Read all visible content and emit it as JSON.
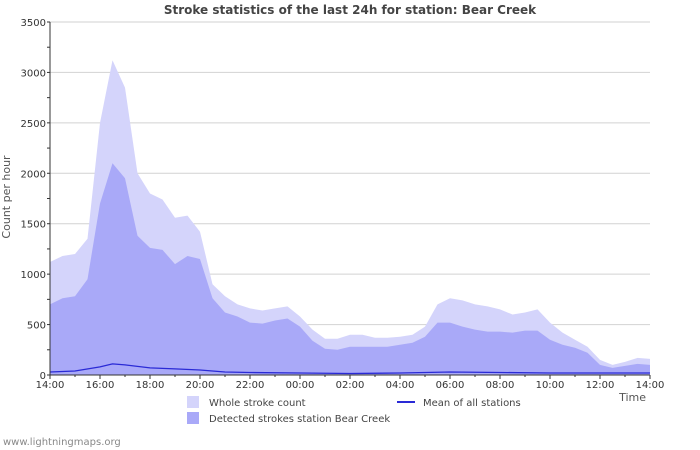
{
  "chart_data": {
    "type": "area",
    "title": "Stroke statistics of the last 24h for station: Bear Creek",
    "xlabel": "Time",
    "ylabel": "Count per hour",
    "ylim": [
      0,
      3500
    ],
    "xlim": [
      0,
      24
    ],
    "y_ticks": [
      0,
      500,
      1000,
      1500,
      2000,
      2500,
      3000,
      3500
    ],
    "x_ticks": [
      {
        "x": 0,
        "label": "14:00"
      },
      {
        "x": 2,
        "label": "16:00"
      },
      {
        "x": 4,
        "label": "18:00"
      },
      {
        "x": 6,
        "label": "20:00"
      },
      {
        "x": 8,
        "label": "22:00"
      },
      {
        "x": 10,
        "label": "00:00"
      },
      {
        "x": 12,
        "label": "02:00"
      },
      {
        "x": 14,
        "label": "04:00"
      },
      {
        "x": 16,
        "label": "06:00"
      },
      {
        "x": 18,
        "label": "08:00"
      },
      {
        "x": 20,
        "label": "10:00"
      },
      {
        "x": 22,
        "label": "12:00"
      },
      {
        "x": 24,
        "label": "14:00"
      }
    ],
    "grid": true,
    "series": [
      {
        "name": "Whole stroke count",
        "color": "#d4d4fb",
        "points": [
          [
            0,
            1120
          ],
          [
            0.5,
            1180
          ],
          [
            1,
            1200
          ],
          [
            1.5,
            1350
          ],
          [
            2,
            2500
          ],
          [
            2.5,
            3120
          ],
          [
            3,
            2850
          ],
          [
            3.5,
            2000
          ],
          [
            4,
            1800
          ],
          [
            4.5,
            1740
          ],
          [
            5,
            1560
          ],
          [
            5.5,
            1580
          ],
          [
            6,
            1420
          ],
          [
            6.5,
            900
          ],
          [
            7,
            780
          ],
          [
            7.5,
            700
          ],
          [
            8,
            660
          ],
          [
            8.5,
            640
          ],
          [
            9,
            660
          ],
          [
            9.5,
            680
          ],
          [
            10,
            580
          ],
          [
            10.5,
            450
          ],
          [
            11,
            360
          ],
          [
            11.5,
            360
          ],
          [
            12,
            400
          ],
          [
            12.5,
            400
          ],
          [
            13,
            370
          ],
          [
            13.5,
            370
          ],
          [
            14,
            380
          ],
          [
            14.5,
            400
          ],
          [
            15,
            480
          ],
          [
            15.5,
            700
          ],
          [
            16,
            760
          ],
          [
            16.5,
            740
          ],
          [
            17,
            700
          ],
          [
            17.5,
            680
          ],
          [
            18,
            650
          ],
          [
            18.5,
            600
          ],
          [
            19,
            620
          ],
          [
            19.5,
            650
          ],
          [
            20,
            520
          ],
          [
            20.5,
            420
          ],
          [
            21,
            350
          ],
          [
            21.5,
            280
          ],
          [
            22,
            150
          ],
          [
            22.5,
            100
          ],
          [
            23,
            130
          ],
          [
            23.5,
            170
          ],
          [
            24,
            160
          ]
        ]
      },
      {
        "name": "Detected strokes station Bear Creek",
        "color": "#a9a9f8",
        "points": [
          [
            0,
            700
          ],
          [
            0.5,
            760
          ],
          [
            1,
            780
          ],
          [
            1.5,
            950
          ],
          [
            2,
            1700
          ],
          [
            2.5,
            2100
          ],
          [
            3,
            1950
          ],
          [
            3.5,
            1380
          ],
          [
            4,
            1260
          ],
          [
            4.5,
            1240
          ],
          [
            5,
            1100
          ],
          [
            5.5,
            1180
          ],
          [
            6,
            1150
          ],
          [
            6.5,
            760
          ],
          [
            7,
            620
          ],
          [
            7.5,
            580
          ],
          [
            8,
            520
          ],
          [
            8.5,
            510
          ],
          [
            9,
            540
          ],
          [
            9.5,
            560
          ],
          [
            10,
            480
          ],
          [
            10.5,
            340
          ],
          [
            11,
            260
          ],
          [
            11.5,
            250
          ],
          [
            12,
            280
          ],
          [
            12.5,
            280
          ],
          [
            13,
            280
          ],
          [
            13.5,
            280
          ],
          [
            14,
            300
          ],
          [
            14.5,
            320
          ],
          [
            15,
            380
          ],
          [
            15.5,
            520
          ],
          [
            16,
            520
          ],
          [
            16.5,
            480
          ],
          [
            17,
            450
          ],
          [
            17.5,
            430
          ],
          [
            18,
            430
          ],
          [
            18.5,
            420
          ],
          [
            19,
            440
          ],
          [
            19.5,
            440
          ],
          [
            20,
            350
          ],
          [
            20.5,
            300
          ],
          [
            21,
            270
          ],
          [
            21.5,
            220
          ],
          [
            22,
            100
          ],
          [
            22.5,
            70
          ],
          [
            23,
            90
          ],
          [
            23.5,
            110
          ],
          [
            24,
            100
          ]
        ]
      },
      {
        "name": "Mean of all stations",
        "color": "#2a2ad6",
        "points": [
          [
            0,
            30
          ],
          [
            1,
            40
          ],
          [
            2,
            80
          ],
          [
            2.5,
            110
          ],
          [
            3,
            100
          ],
          [
            4,
            70
          ],
          [
            5,
            60
          ],
          [
            6,
            50
          ],
          [
            7,
            30
          ],
          [
            8,
            25
          ],
          [
            10,
            20
          ],
          [
            12,
            15
          ],
          [
            14,
            20
          ],
          [
            16,
            30
          ],
          [
            18,
            25
          ],
          [
            20,
            20
          ],
          [
            22,
            20
          ],
          [
            24,
            20
          ]
        ]
      }
    ],
    "legend": [
      {
        "label": "Whole stroke count",
        "kind": "area",
        "color": "#d4d4fb"
      },
      {
        "label": "Detected strokes station Bear Creek",
        "kind": "area",
        "color": "#a9a9f8"
      },
      {
        "label": "Mean of all stations",
        "kind": "line",
        "color": "#2a2ad6"
      }
    ]
  },
  "footer": "www.lightningmaps.org"
}
